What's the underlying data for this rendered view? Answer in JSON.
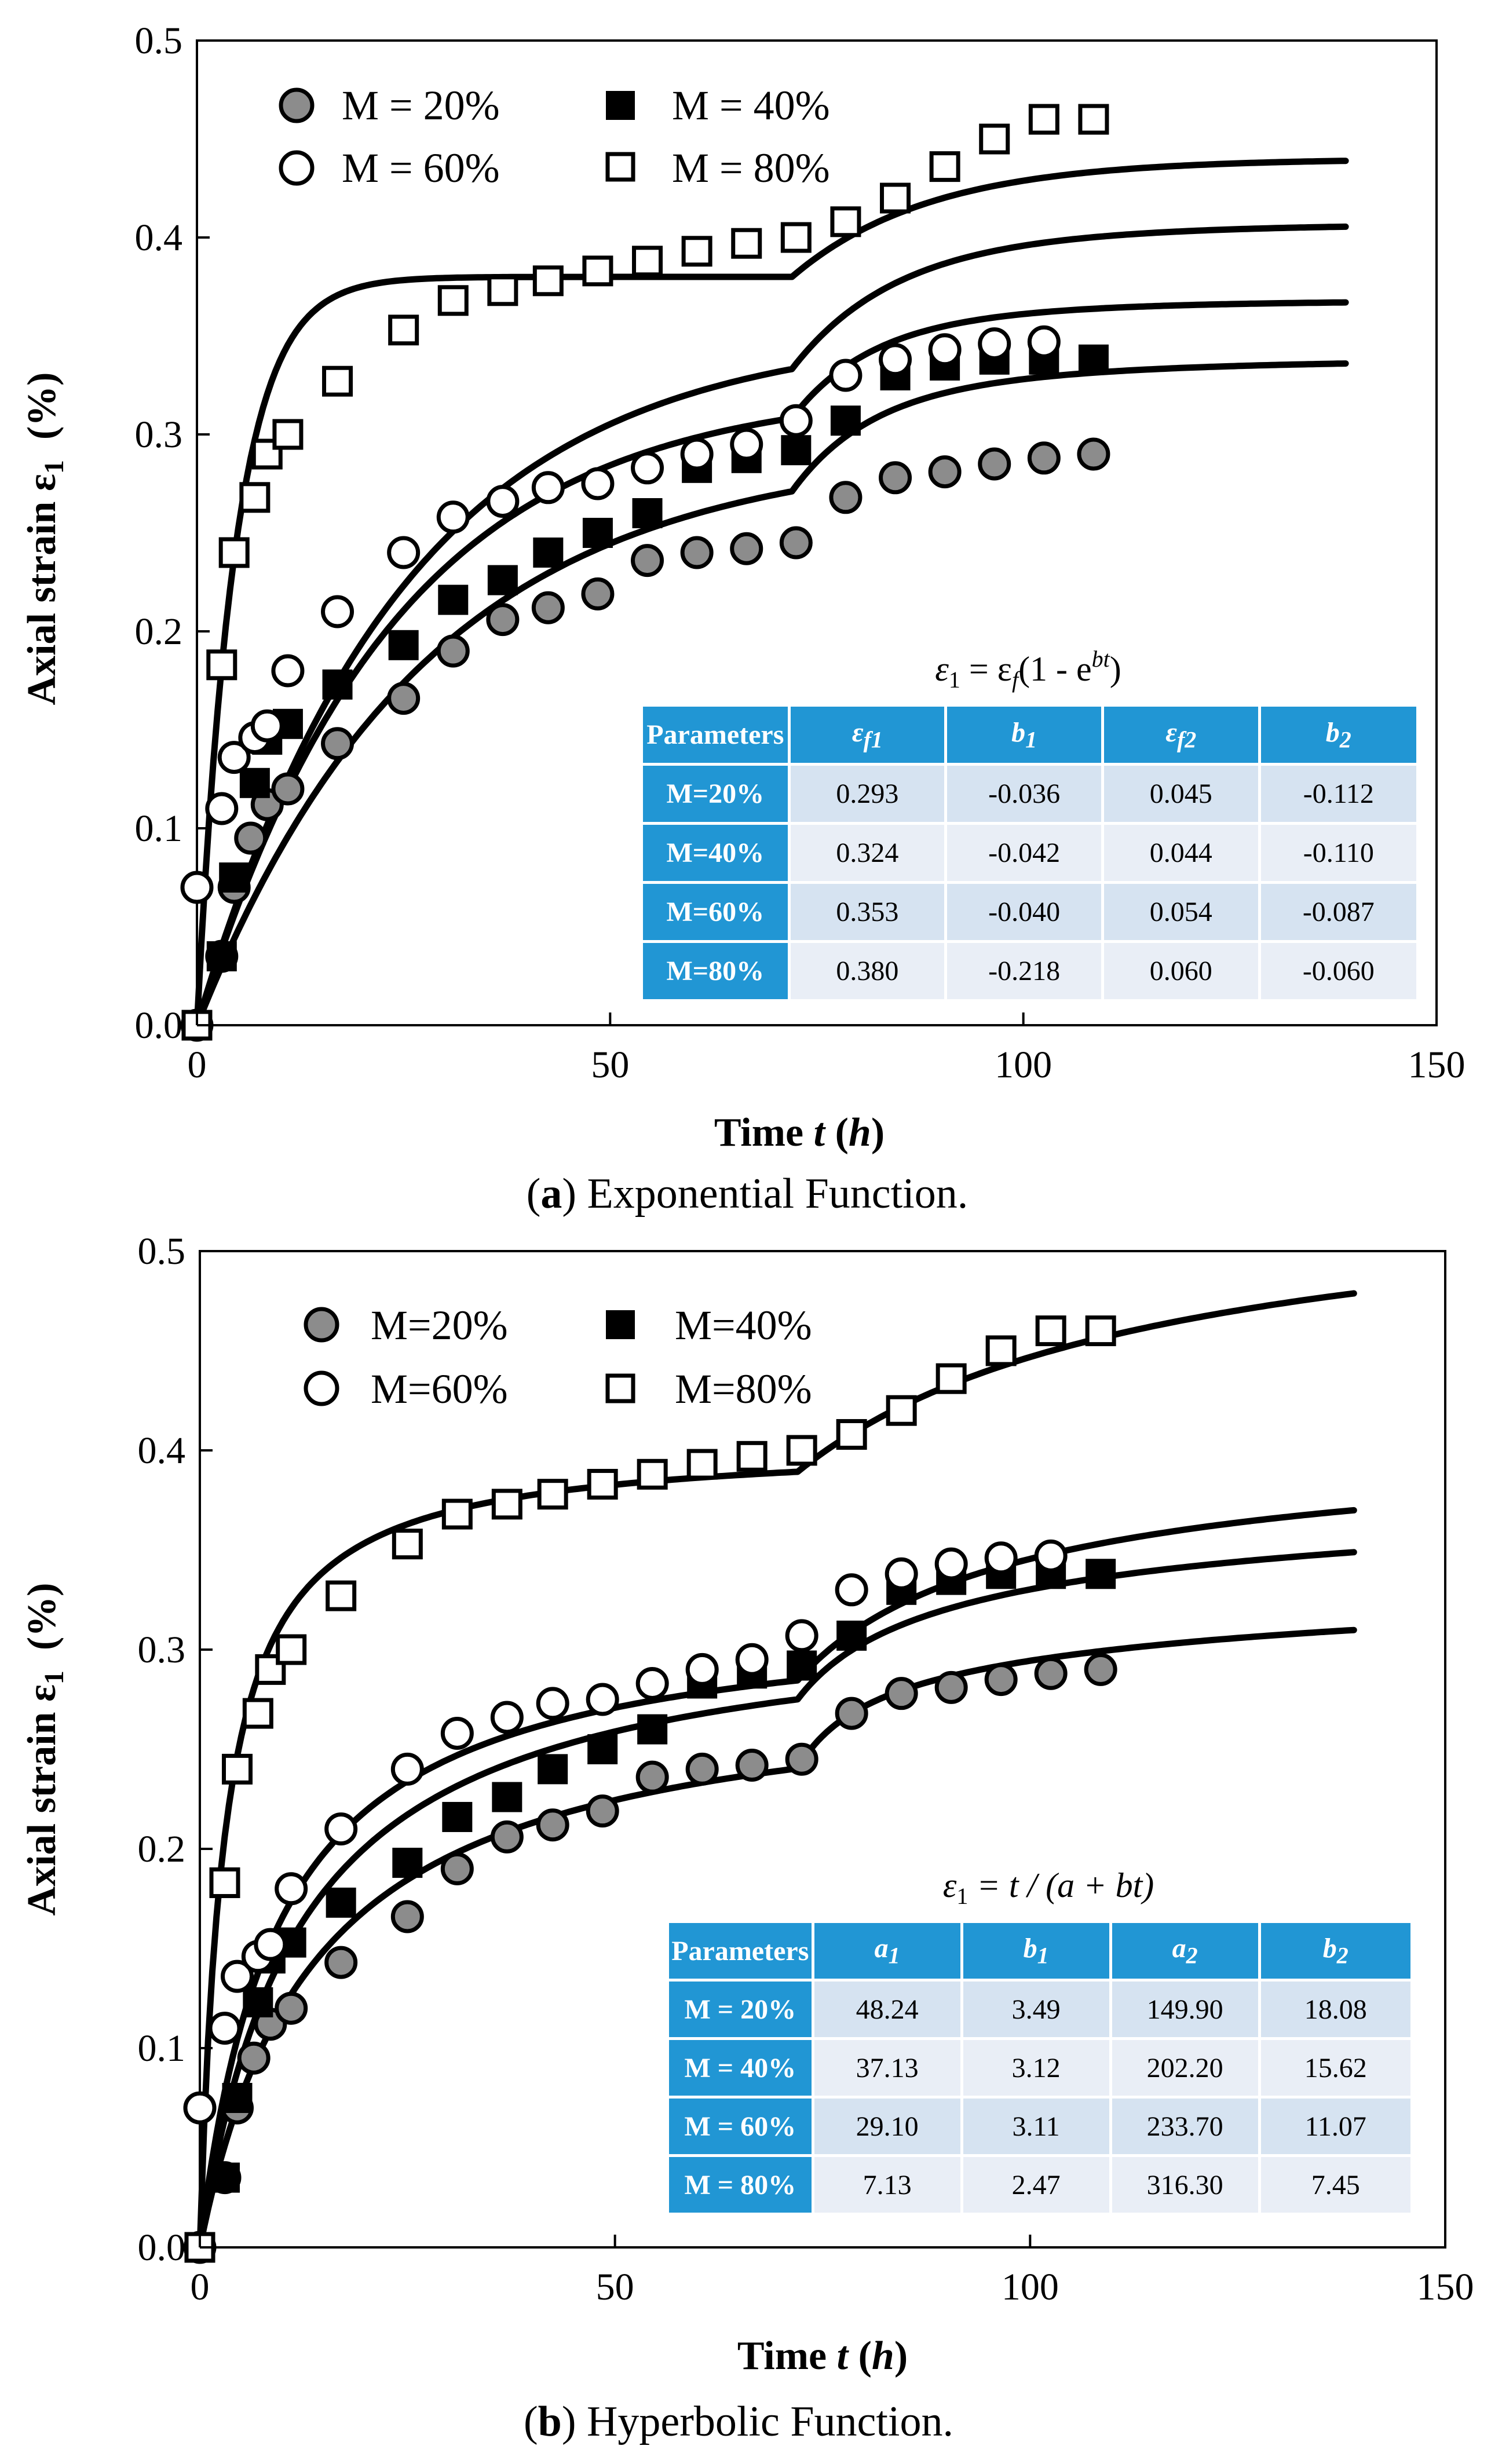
{
  "colors": {
    "header": "#2196d4",
    "row_odd": "#d6e3f1",
    "row_even": "#e9eef6",
    "marker_gray": "#8c8c8c",
    "line": "#000000"
  },
  "chart_data": [
    {
      "type": "scatter",
      "panel": "a",
      "caption_label": "a",
      "caption_text": ") Exponential Function.",
      "caption_open": "(",
      "xlabel_text": "Time ",
      "xlabel_var": "t",
      "xlabel_unit_var": "h",
      "ylabel": "Axial strain ε",
      "ylabel_sub": "1",
      "ylabel_unit": "  (%)",
      "xlim": [
        0,
        150
      ],
      "ylim": [
        0,
        0.5
      ],
      "x_ticks": [
        "0",
        "50",
        "100",
        "150"
      ],
      "y_ticks": [
        "0.0",
        "0.1",
        "0.2",
        "0.3",
        "0.4",
        "0.5"
      ],
      "legend": [
        "M = 20%",
        "M = 40%",
        "M = 60%",
        "M = 80%"
      ],
      "series": [
        {
          "name": "M = 20%",
          "marker": "circle-gray",
          "points": [
            [
              0,
              0
            ],
            [
              3,
              0.035
            ],
            [
              4.5,
              0.07
            ],
            [
              6.5,
              0.095
            ],
            [
              8.5,
              0.112
            ],
            [
              11,
              0.12
            ],
            [
              17,
              0.143
            ],
            [
              25,
              0.166
            ],
            [
              31,
              0.19
            ],
            [
              37,
              0.206
            ],
            [
              42.5,
              0.212
            ],
            [
              48.5,
              0.219
            ],
            [
              54.5,
              0.236
            ],
            [
              60.5,
              0.24
            ],
            [
              66.5,
              0.242
            ],
            [
              72.5,
              0.245
            ],
            [
              78.5,
              0.268
            ],
            [
              84.5,
              0.278
            ],
            [
              90.5,
              0.281
            ],
            [
              96.5,
              0.285
            ],
            [
              102.5,
              0.288
            ],
            [
              108.5,
              0.29
            ]
          ]
        },
        {
          "name": "M = 40%",
          "marker": "square-filled",
          "points": [
            [
              0,
              0
            ],
            [
              3,
              0.035
            ],
            [
              4.5,
              0.075
            ],
            [
              7,
              0.123
            ],
            [
              8.5,
              0.145
            ],
            [
              11,
              0.153
            ],
            [
              17,
              0.173
            ],
            [
              25,
              0.193
            ],
            [
              31,
              0.216
            ],
            [
              37,
              0.226
            ],
            [
              42.5,
              0.24
            ],
            [
              48.5,
              0.25
            ],
            [
              54.5,
              0.26
            ],
            [
              60.5,
              0.283
            ],
            [
              66.5,
              0.288
            ],
            [
              72.5,
              0.292
            ],
            [
              78.5,
              0.307
            ],
            [
              84.5,
              0.33
            ],
            [
              90.5,
              0.335
            ],
            [
              96.5,
              0.338
            ],
            [
              102.5,
              0.338
            ],
            [
              108.5,
              0.338
            ]
          ]
        },
        {
          "name": "M = 60%",
          "marker": "circle-open",
          "points": [
            [
              0,
              0.07
            ],
            [
              3,
              0.11
            ],
            [
              4.5,
              0.136
            ],
            [
              7,
              0.146
            ],
            [
              8.5,
              0.152
            ],
            [
              11,
              0.18
            ],
            [
              17,
              0.21
            ],
            [
              25,
              0.24
            ],
            [
              31,
              0.258
            ],
            [
              37,
              0.266
            ],
            [
              42.5,
              0.273
            ],
            [
              48.5,
              0.275
            ],
            [
              54.5,
              0.283
            ],
            [
              60.5,
              0.29
            ],
            [
              66.5,
              0.295
            ],
            [
              72.5,
              0.307
            ],
            [
              78.5,
              0.33
            ],
            [
              84.5,
              0.338
            ],
            [
              90.5,
              0.343
            ],
            [
              96.5,
              0.346
            ],
            [
              102.5,
              0.347
            ]
          ]
        },
        {
          "name": "M = 80%",
          "marker": "square-open",
          "points": [
            [
              0,
              0
            ],
            [
              3,
              0.183
            ],
            [
              4.5,
              0.24
            ],
            [
              7,
              0.268
            ],
            [
              8.5,
              0.29
            ],
            [
              11,
              0.3
            ],
            [
              17,
              0.327
            ],
            [
              25,
              0.353
            ],
            [
              31,
              0.368
            ],
            [
              37,
              0.373
            ],
            [
              42.5,
              0.378
            ],
            [
              48.5,
              0.383
            ],
            [
              54.5,
              0.388
            ],
            [
              60.5,
              0.393
            ],
            [
              66.5,
              0.397
            ],
            [
              72.5,
              0.4
            ],
            [
              78.5,
              0.408
            ],
            [
              84.5,
              0.42
            ],
            [
              90.5,
              0.436
            ],
            [
              96.5,
              0.45
            ],
            [
              102.5,
              0.46
            ],
            [
              108.5,
              0.46
            ]
          ]
        }
      ],
      "fits": [
        {
          "name": "M = 20% fit",
          "model": "exponential",
          "ef1": 0.293,
          "b1": -0.036,
          "ef2": 0.045,
          "b2": -0.112
        },
        {
          "name": "M = 40% fit",
          "model": "exponential",
          "ef1": 0.324,
          "b1": -0.042,
          "ef2": 0.044,
          "b2": -0.11
        },
        {
          "name": "M = 60% fit",
          "model": "exponential",
          "ef1": 0.353,
          "b1": -0.04,
          "ef2": 0.054,
          "b2": -0.087
        },
        {
          "name": "M = 80% fit",
          "model": "exponential",
          "ef1": 0.38,
          "b1": -0.218,
          "ef2": 0.06,
          "b2": -0.06
        }
      ],
      "stage_break_t": 72
    },
    {
      "type": "scatter",
      "panel": "b",
      "caption_label": "b",
      "caption_text": ") Hyperbolic Function.",
      "caption_open": "(",
      "xlabel_text": "Time ",
      "xlabel_var": "t",
      "xlabel_unit_var": "h",
      "ylabel": "Axial strain ε",
      "ylabel_sub": "1",
      "ylabel_unit": "  (%)",
      "xlim": [
        0,
        150
      ],
      "ylim": [
        0,
        0.5
      ],
      "x_ticks": [
        "0",
        "50",
        "100",
        "150"
      ],
      "y_ticks": [
        "0.0",
        "0.1",
        "0.2",
        "0.3",
        "0.4",
        "0.5"
      ],
      "legend": [
        "M=20%",
        "M=40%",
        "M=60%",
        "M=80%"
      ],
      "series": [
        {
          "name": "M=20%",
          "marker": "circle-gray",
          "points": [
            [
              0,
              0
            ],
            [
              3,
              0.035
            ],
            [
              4.5,
              0.07
            ],
            [
              6.5,
              0.095
            ],
            [
              8.5,
              0.112
            ],
            [
              11,
              0.12
            ],
            [
              17,
              0.143
            ],
            [
              25,
              0.166
            ],
            [
              31,
              0.19
            ],
            [
              37,
              0.206
            ],
            [
              42.5,
              0.212
            ],
            [
              48.5,
              0.219
            ],
            [
              54.5,
              0.236
            ],
            [
              60.5,
              0.24
            ],
            [
              66.5,
              0.242
            ],
            [
              72.5,
              0.245
            ],
            [
              78.5,
              0.268
            ],
            [
              84.5,
              0.278
            ],
            [
              90.5,
              0.281
            ],
            [
              96.5,
              0.285
            ],
            [
              102.5,
              0.288
            ],
            [
              108.5,
              0.29
            ]
          ]
        },
        {
          "name": "M=40%",
          "marker": "square-filled",
          "points": [
            [
              0,
              0
            ],
            [
              3,
              0.035
            ],
            [
              4.5,
              0.075
            ],
            [
              7,
              0.123
            ],
            [
              8.5,
              0.145
            ],
            [
              11,
              0.153
            ],
            [
              17,
              0.173
            ],
            [
              25,
              0.193
            ],
            [
              31,
              0.216
            ],
            [
              37,
              0.226
            ],
            [
              42.5,
              0.24
            ],
            [
              48.5,
              0.25
            ],
            [
              54.5,
              0.26
            ],
            [
              60.5,
              0.283
            ],
            [
              66.5,
              0.288
            ],
            [
              72.5,
              0.292
            ],
            [
              78.5,
              0.307
            ],
            [
              84.5,
              0.33
            ],
            [
              90.5,
              0.335
            ],
            [
              96.5,
              0.338
            ],
            [
              102.5,
              0.338
            ],
            [
              108.5,
              0.338
            ]
          ]
        },
        {
          "name": "M=60%",
          "marker": "circle-open",
          "points": [
            [
              0,
              0.07
            ],
            [
              3,
              0.11
            ],
            [
              4.5,
              0.136
            ],
            [
              7,
              0.146
            ],
            [
              8.5,
              0.152
            ],
            [
              11,
              0.18
            ],
            [
              17,
              0.21
            ],
            [
              25,
              0.24
            ],
            [
              31,
              0.258
            ],
            [
              37,
              0.266
            ],
            [
              42.5,
              0.273
            ],
            [
              48.5,
              0.275
            ],
            [
              54.5,
              0.283
            ],
            [
              60.5,
              0.29
            ],
            [
              66.5,
              0.295
            ],
            [
              72.5,
              0.307
            ],
            [
              78.5,
              0.33
            ],
            [
              84.5,
              0.338
            ],
            [
              90.5,
              0.343
            ],
            [
              96.5,
              0.346
            ],
            [
              102.5,
              0.347
            ]
          ]
        },
        {
          "name": "M=80%",
          "marker": "square-open",
          "points": [
            [
              0,
              0
            ],
            [
              3,
              0.183
            ],
            [
              4.5,
              0.24
            ],
            [
              7,
              0.268
            ],
            [
              8.5,
              0.29
            ],
            [
              11,
              0.3
            ],
            [
              17,
              0.327
            ],
            [
              25,
              0.353
            ],
            [
              31,
              0.368
            ],
            [
              37,
              0.373
            ],
            [
              42.5,
              0.378
            ],
            [
              48.5,
              0.383
            ],
            [
              54.5,
              0.388
            ],
            [
              60.5,
              0.393
            ],
            [
              66.5,
              0.397
            ],
            [
              72.5,
              0.4
            ],
            [
              78.5,
              0.408
            ],
            [
              84.5,
              0.42
            ],
            [
              90.5,
              0.436
            ],
            [
              96.5,
              0.45
            ],
            [
              102.5,
              0.46
            ],
            [
              108.5,
              0.46
            ]
          ]
        }
      ],
      "fits": [
        {
          "name": "M=20% fit",
          "model": "hyperbolic",
          "a1": 48.24,
          "b1": 3.49,
          "a2": 149.9,
          "b2": 18.08
        },
        {
          "name": "M=40% fit",
          "model": "hyperbolic",
          "a1": 37.13,
          "b1": 3.12,
          "a2": 202.2,
          "b2": 15.62
        },
        {
          "name": "M=60% fit",
          "model": "hyperbolic",
          "a1": 29.1,
          "b1": 3.11,
          "a2": 233.7,
          "b2": 11.07
        },
        {
          "name": "M=80% fit",
          "model": "hyperbolic",
          "a1": 7.13,
          "b1": 2.47,
          "a2": 316.3,
          "b2": 7.45
        }
      ],
      "stage_break_t": 72
    }
  ],
  "table_a": {
    "formula_lhs": "ε",
    "formula_lhs_sub": "1",
    "formula_mid": " = ε",
    "formula_mid_sub": "f",
    "formula_paren": "(1 - e",
    "formula_sup": "bt",
    "formula_close": ")",
    "headers": {
      "h0": "Parameters",
      "h1": "ε",
      "h1_sub": "f1",
      "h2": "b",
      "h2_sub": "1",
      "h3": "ε",
      "h3_sub": "f2",
      "h4": "b",
      "h4_sub": "2"
    },
    "rows": [
      {
        "label": "M=20%",
        "c1": "0.293",
        "c2": "-0.036",
        "c3": "0.045",
        "c4": "-0.112"
      },
      {
        "label": "M=40%",
        "c1": "0.324",
        "c2": "-0.042",
        "c3": "0.044",
        "c4": "-0.110"
      },
      {
        "label": "M=60%",
        "c1": "0.353",
        "c2": "-0.040",
        "c3": "0.054",
        "c4": "-0.087"
      },
      {
        "label": "M=80%",
        "c1": "0.380",
        "c2": "-0.218",
        "c3": "0.060",
        "c4": "-0.060"
      }
    ]
  },
  "table_b": {
    "formula_lhs": "ε",
    "formula_lhs_sub": "1",
    "formula_rest": " = t / (a + bt)",
    "headers": {
      "h0": "Parameters",
      "h1": "a",
      "h1_sub": "1",
      "h2": "b",
      "h2_sub": "1",
      "h3": "a",
      "h3_sub": "2",
      "h4": "b",
      "h4_sub": "2"
    },
    "rows": [
      {
        "label": "M = 20%",
        "c1": "48.24",
        "c2": "3.49",
        "c3": "149.90",
        "c4": "18.08"
      },
      {
        "label": "M = 40%",
        "c1": "37.13",
        "c2": "3.12",
        "c3": "202.20",
        "c4": "15.62"
      },
      {
        "label": "M = 60%",
        "c1": "29.10",
        "c2": "3.11",
        "c3": "233.70",
        "c4": "11.07"
      },
      {
        "label": "M = 80%",
        "c1": "7.13",
        "c2": "2.47",
        "c3": "316.30",
        "c4": "7.45"
      }
    ]
  }
}
